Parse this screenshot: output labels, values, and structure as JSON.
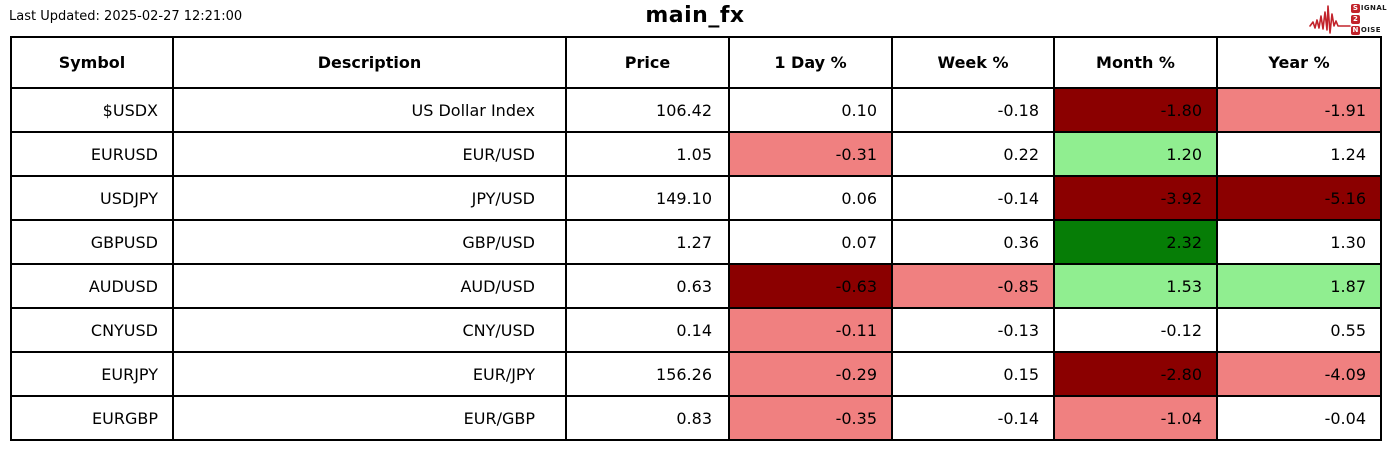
{
  "header": {
    "last_updated": "Last Updated: 2025-02-27 12:21:00",
    "title": "main_fx",
    "logo": {
      "s_badge": "S",
      "s_rest": "IGNAL",
      "two_badge": "2",
      "n_badge": "N",
      "n_rest": "OISE"
    }
  },
  "colors": {
    "darkred": "#8b0000",
    "lightcoral": "#f08080",
    "lightgreen": "#90ee90",
    "green": "#067d06",
    "logo_red": "#c2232b",
    "border": "#000000",
    "background": "#ffffff"
  },
  "table": {
    "columns": [
      "Symbol",
      "Description",
      "Price",
      "1 Day %",
      "Week %",
      "Month %",
      "Year %"
    ],
    "rows": [
      {
        "symbol": "$USDX",
        "description": "US Dollar Index",
        "price": "106.42",
        "day": "0.10",
        "week": "-0.18",
        "month": "-1.80",
        "year": "-1.91",
        "day_bg": null,
        "week_bg": null,
        "month_bg": "darkred",
        "year_bg": "lightcoral"
      },
      {
        "symbol": "EURUSD",
        "description": "EUR/USD",
        "price": "1.05",
        "day": "-0.31",
        "week": "0.22",
        "month": "1.20",
        "year": "1.24",
        "day_bg": "lightcoral",
        "week_bg": null,
        "month_bg": "lightgreen",
        "year_bg": null
      },
      {
        "symbol": "USDJPY",
        "description": "JPY/USD",
        "price": "149.10",
        "day": "0.06",
        "week": "-0.14",
        "month": "-3.92",
        "year": "-5.16",
        "day_bg": null,
        "week_bg": null,
        "month_bg": "darkred",
        "year_bg": "darkred"
      },
      {
        "symbol": "GBPUSD",
        "description": "GBP/USD",
        "price": "1.27",
        "day": "0.07",
        "week": "0.36",
        "month": "2.32",
        "year": "1.30",
        "day_bg": null,
        "week_bg": null,
        "month_bg": "green",
        "year_bg": null
      },
      {
        "symbol": "AUDUSD",
        "description": "AUD/USD",
        "price": "0.63",
        "day": "-0.63",
        "week": "-0.85",
        "month": "1.53",
        "year": "1.87",
        "day_bg": "darkred",
        "week_bg": "lightcoral",
        "month_bg": "lightgreen",
        "year_bg": "lightgreen"
      },
      {
        "symbol": "CNYUSD",
        "description": "CNY/USD",
        "price": "0.14",
        "day": "-0.11",
        "week": "-0.13",
        "month": "-0.12",
        "year": "0.55",
        "day_bg": "lightcoral",
        "week_bg": null,
        "month_bg": null,
        "year_bg": null
      },
      {
        "symbol": "EURJPY",
        "description": "EUR/JPY",
        "price": "156.26",
        "day": "-0.29",
        "week": "0.15",
        "month": "-2.80",
        "year": "-4.09",
        "day_bg": "lightcoral",
        "week_bg": null,
        "month_bg": "darkred",
        "year_bg": "lightcoral"
      },
      {
        "symbol": "EURGBP",
        "description": "EUR/GBP",
        "price": "0.83",
        "day": "-0.35",
        "week": "-0.14",
        "month": "-1.04",
        "year": "-0.04",
        "day_bg": "lightcoral",
        "week_bg": null,
        "month_bg": "lightcoral",
        "year_bg": null
      }
    ]
  },
  "chart_data": {
    "type": "table",
    "title": "main_fx",
    "last_updated": "2025-02-27 12:21:00",
    "columns": [
      "Symbol",
      "Description",
      "Price",
      "1 Day %",
      "Week %",
      "Month %",
      "Year %"
    ],
    "rows": [
      [
        "$USDX",
        "US Dollar Index",
        106.42,
        0.1,
        -0.18,
        -1.8,
        -1.91
      ],
      [
        "EURUSD",
        "EUR/USD",
        1.05,
        -0.31,
        0.22,
        1.2,
        1.24
      ],
      [
        "USDJPY",
        "JPY/USD",
        149.1,
        0.06,
        -0.14,
        -3.92,
        -5.16
      ],
      [
        "GBPUSD",
        "GBP/USD",
        1.27,
        0.07,
        0.36,
        2.32,
        1.3
      ],
      [
        "AUDUSD",
        "AUD/USD",
        0.63,
        -0.63,
        -0.85,
        1.53,
        1.87
      ],
      [
        "CNYUSD",
        "CNY/USD",
        0.14,
        -0.11,
        -0.13,
        -0.12,
        0.55
      ],
      [
        "EURJPY",
        "EUR/JPY",
        156.26,
        -0.29,
        0.15,
        -2.8,
        -4.09
      ],
      [
        "EURGBP",
        "EUR/GBP",
        0.83,
        -0.35,
        -0.14,
        -1.04,
        -0.04
      ]
    ],
    "color_coding": "negative changes shaded lightcoral to darkred, positive changes shaded lightgreen to green, per column intensity"
  }
}
